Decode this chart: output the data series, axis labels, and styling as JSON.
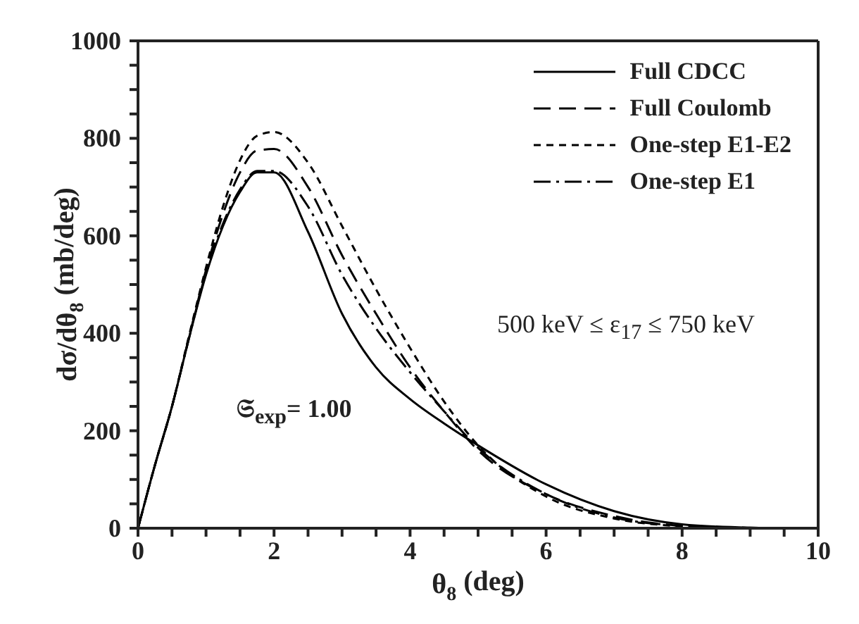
{
  "chart_data": {
    "type": "line",
    "xlabel": "θ$_{8}$ (deg)",
    "ylabel": "dσ/dθ$_{8}$ (mb/deg)",
    "x": [
      0,
      0.25,
      0.5,
      0.75,
      1,
      1.25,
      1.5,
      1.75,
      2,
      2.5,
      3,
      3.5,
      4,
      4.5,
      5,
      6,
      7,
      8,
      9,
      9.5,
      10
    ],
    "series": [
      {
        "name": "Full CDCC",
        "color": "#000000",
        "line_style": "solid",
        "values": [
          0,
          130,
          250,
          390,
          520,
          620,
          690,
          730,
          730,
          608,
          440,
          330,
          265,
          215,
          170,
          90,
          35,
          8,
          1,
          0,
          0
        ]
      },
      {
        "name": "Full Coulomb",
        "color": "#000000",
        "line_style": "dashed",
        "values": [
          0,
          130,
          250,
          392,
          530,
          645,
          730,
          775,
          778,
          700,
          560,
          440,
          330,
          240,
          160,
          70,
          25,
          5,
          1,
          0,
          null
        ]
      },
      {
        "name": "One-step E1-E2",
        "color": "#000000",
        "line_style": "dotted",
        "values": [
          0,
          130,
          250,
          395,
          535,
          660,
          755,
          805,
          813,
          750,
          620,
          490,
          370,
          260,
          170,
          65,
          20,
          4,
          0,
          null,
          null
        ]
      },
      {
        "name": "One-step E1",
        "color": "#000000",
        "line_style": "dashdot",
        "values": [
          0,
          130,
          250,
          390,
          525,
          625,
          695,
          733,
          733,
          660,
          520,
          410,
          320,
          240,
          165,
          70,
          22,
          5,
          null,
          null,
          null
        ]
      }
    ],
    "xlim": [
      0,
      10
    ],
    "xticks": [
      0,
      {
        "value": 0.5,
        "label": null
      },
      {
        "value": 1,
        "label": null
      },
      {
        "value": 1.5,
        "label": null
      },
      2,
      {
        "value": 2.5,
        "label": null
      },
      {
        "value": 3,
        "label": null
      },
      {
        "value": 3.5,
        "label": null
      },
      4,
      {
        "value": 4.5,
        "label": null
      },
      {
        "value": 5,
        "label": null
      },
      {
        "value": 5.5,
        "label": null
      },
      6,
      {
        "value": 6.5,
        "label": null
      },
      {
        "value": 7,
        "label": null
      },
      {
        "value": 7.5,
        "label": null
      },
      8,
      {
        "value": 8.5,
        "label": null
      },
      {
        "value": 9,
        "label": null
      },
      {
        "value": 9.5,
        "label": null
      },
      10
    ],
    "ylim": [
      0,
      1000
    ],
    "yticks": [
      0,
      {
        "value": 50,
        "label": null
      },
      {
        "value": 100,
        "label": null
      },
      {
        "value": 150,
        "label": null
      },
      200,
      {
        "value": 250,
        "label": null
      },
      {
        "value": 300,
        "label": null
      },
      {
        "value": 350,
        "label": null
      },
      400,
      {
        "value": 450,
        "label": null
      },
      {
        "value": 500,
        "label": null
      },
      {
        "value": 550,
        "label": null
      },
      600,
      {
        "value": 650,
        "label": null
      },
      {
        "value": 700,
        "label": null
      },
      {
        "value": 750,
        "label": null
      },
      800,
      {
        "value": 850,
        "label": null
      },
      {
        "value": 900,
        "label": null
      },
      {
        "value": 950,
        "label": null
      },
      1000
    ],
    "annotations": [
      "500 keV ≤ ε$_{17}$ ≤ 750 keV",
      "𝔖$_{exp}$= 1.00"
    ],
    "legend": "top right",
    "grid": false,
    "marker": "none"
  }
}
